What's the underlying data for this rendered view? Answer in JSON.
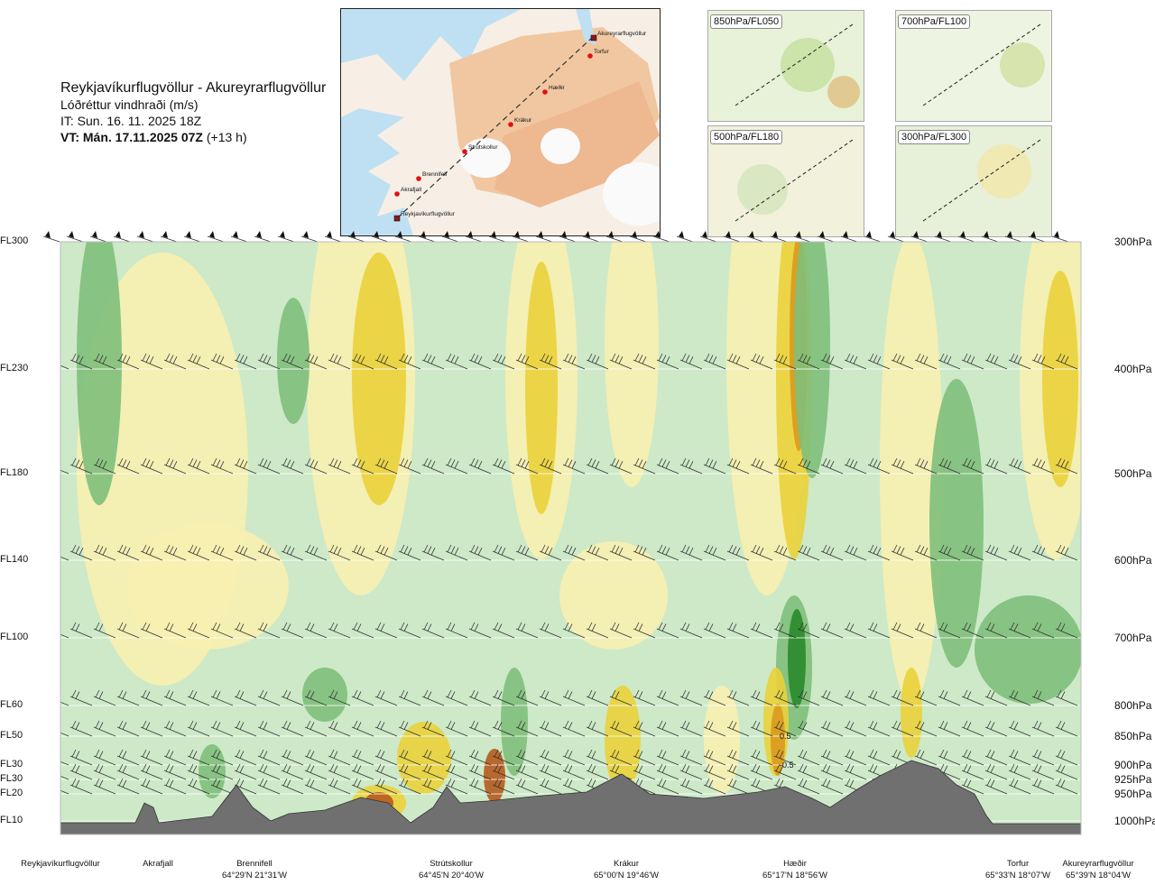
{
  "header": {
    "route": "Reykjavíkurflugvöllur - Akureyrarflugvöllur",
    "parameter": "Lóðréttur vindhraði (m/s)",
    "issue_time": "IT: Sun. 16. 11. 2025 18Z",
    "valid_time_bold": "VT: Mán. 17.11.2025 07Z",
    "valid_time_offset": "(+13 h)"
  },
  "map": {
    "waypoints": [
      "Akureyrarflugvöllur",
      "Torfur",
      "Hæðir",
      "Krákur",
      "Strútskollur",
      "Brennifell",
      "Akrafjall",
      "Reykjavíkurflugvöllur"
    ]
  },
  "mini_maps": [
    {
      "label": "850hPa/FL050"
    },
    {
      "label": "700hPa/FL100"
    },
    {
      "label": "500hPa/FL180"
    },
    {
      "label": "300hPa/FL300"
    }
  ],
  "colors": {
    "strong_down": "#2a8a2a",
    "mod_down": "#7fbf7a",
    "weak_down": "#cde9c8",
    "neutral": "#ffffff",
    "weak_up": "#f8efb0",
    "mod_up": "#ead23a",
    "strong_up": "#d99a1e",
    "extreme_up": "#b75a1c",
    "terrain": "#707070"
  },
  "chart_data": {
    "type": "heatmap",
    "title": "Lóðréttur vindhraði (m/s)",
    "y_flight_levels": [
      "FL300",
      "FL230",
      "FL180",
      "FL140",
      "FL100",
      "FL60",
      "FL50",
      "FL30",
      "FL30",
      "FL20",
      "FL10"
    ],
    "y_pressure_levels": [
      "300hPa",
      "400hPa",
      "500hPa",
      "600hPa",
      "700hPa",
      "800hPa",
      "850hPa",
      "900hPa",
      "925hPa",
      "950hPa",
      "1000hPa"
    ],
    "x_locations": [
      {
        "name": "Reykjavíkurflugvöllur",
        "coord": ""
      },
      {
        "name": "Akrafjall",
        "coord": ""
      },
      {
        "name": "Brennifell",
        "coord": "64°29'N 21°31'W"
      },
      {
        "name": "Strútskollur",
        "coord": "64°45'N 20°40'W"
      },
      {
        "name": "Krákur",
        "coord": "65°00'N 19°46'W"
      },
      {
        "name": "Hæðir",
        "coord": "65°17'N 18°56'W"
      },
      {
        "name": "Torfur",
        "coord": "65°33'N 18°07'W"
      },
      {
        "name": "Akureyrarflugvöllur",
        "coord": "65°39'N 18°04'W"
      }
    ],
    "annotations": [
      {
        "text": "0.5",
        "location": "Hæðir",
        "level": "850hPa"
      },
      {
        "text": "-0.5",
        "location": "Hæðir",
        "level": "900hPa"
      }
    ]
  }
}
